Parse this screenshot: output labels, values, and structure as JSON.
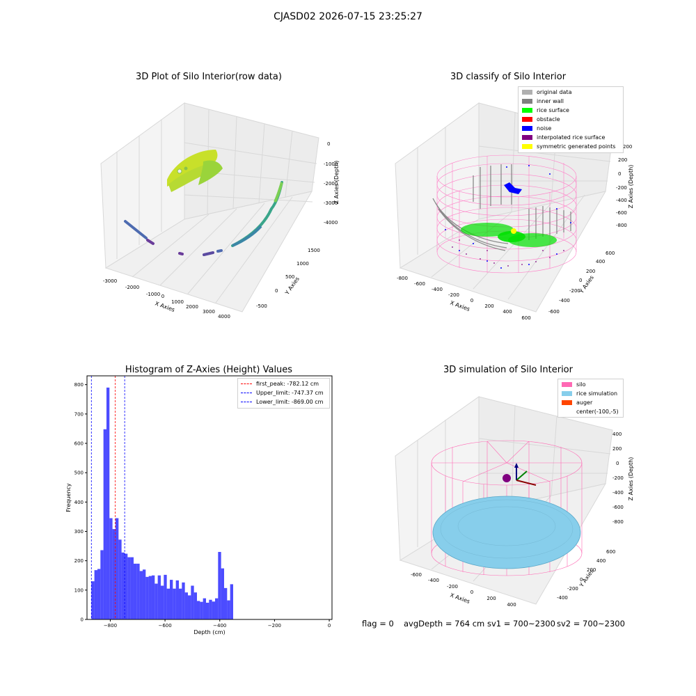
{
  "figure": {
    "suptitle": "CJASD02 2026-07-15 23:25:27",
    "footer": {
      "flag": "flag = 0",
      "avg_depth": "avgDepth = 764 cm",
      "sv1": "sv1 = 700~2300",
      "sv2": "sv2 = 700~2300"
    }
  },
  "panels": {
    "raw": {
      "title": "3D Plot of Silo Interior(row data)",
      "xlabel": "X Axies",
      "ylabel": "Y Axies",
      "zlabel": "Z Axies (Depth)",
      "xticks": [
        "-3000",
        "-2000",
        "-1000",
        "0",
        "1000",
        "2000",
        "3000",
        "4000"
      ],
      "yticks": [
        "-500",
        "0",
        "500",
        "1000",
        "1500"
      ],
      "zticks": [
        "0",
        "-1000",
        "-2000",
        "-3000",
        "-4000"
      ]
    },
    "classify": {
      "title": "3D classify of Silo Interior",
      "xlabel": "X Axies",
      "ylabel": "Y Axies",
      "zlabel": "Z Axies (Depth)",
      "xticks": [
        "-800",
        "-600",
        "-400",
        "-200",
        "0",
        "200",
        "400",
        "600"
      ],
      "yticks": [
        "-600",
        "-400",
        "-200",
        "0",
        "200",
        "400",
        "600"
      ],
      "zticks": [
        "200",
        "0",
        "-200",
        "-400",
        "-600",
        "-800"
      ],
      "ztick_top": "200",
      "legend": [
        {
          "label": "original data",
          "color": "#b0b0b0"
        },
        {
          "label": "inner wall",
          "color": "#808080"
        },
        {
          "label": "rice surface",
          "color": "#00ff00"
        },
        {
          "label": "obstacle",
          "color": "#ff0000"
        },
        {
          "label": "noise",
          "color": "#0000ff"
        },
        {
          "label": "interpolated rice surface",
          "color": "#800080"
        },
        {
          "label": "symmetric generated points",
          "color": "#ffff00"
        }
      ]
    },
    "simulation": {
      "title": "3D simulation of Silo Interior",
      "xlabel": "X Axies",
      "ylabel": "Y Axies",
      "zlabel": "Z Axies (Depth)",
      "xticks": [
        "-600",
        "-400",
        "-200",
        "0",
        "200",
        "400"
      ],
      "yticks": [
        "-400",
        "-200",
        "0",
        "200",
        "400",
        "600"
      ],
      "zticks": [
        "400",
        "200",
        "0",
        "-200",
        "-400",
        "-600",
        "-800"
      ],
      "legend": [
        {
          "label": "silo",
          "color": "#ff69b4"
        },
        {
          "label": "rice simulation",
          "color": "#87ceeb"
        },
        {
          "label": "auger",
          "color": "#ff4500"
        },
        {
          "label": "center(-100,-5)",
          "color": ""
        }
      ]
    }
  },
  "chart_data": {
    "type": "bar",
    "title": "Histogram of Z-Axies (Height) Values",
    "xlabel": "Depth (cm)",
    "ylabel": "Frequency",
    "xlim": [
      -885,
      10
    ],
    "ylim": [
      0,
      830
    ],
    "xticks": [
      -800,
      -600,
      -400,
      -200,
      0
    ],
    "yticks": [
      0,
      100,
      200,
      300,
      400,
      500,
      600,
      700,
      800
    ],
    "bar_color": "#0000ff",
    "bin_edges_start": -869,
    "bin_width": 11.02,
    "values": [
      130,
      168,
      172,
      236,
      648,
      790,
      345,
      308,
      345,
      272,
      228,
      224,
      212,
      212,
      190,
      190,
      165,
      170,
      145,
      148,
      150,
      122,
      150,
      115,
      152,
      105,
      135,
      105,
      133,
      105,
      126,
      92,
      82,
      115,
      92,
      63,
      60,
      72,
      57,
      67,
      61,
      72,
      230,
      174,
      107,
      65,
      120
    ],
    "vlines": [
      {
        "label": "first_peak: -782.12 cm",
        "x": -782.12,
        "color": "#ff0000"
      },
      {
        "label": "Upper_limit: -747.37 cm",
        "x": -747.37,
        "color": "#0000ff"
      },
      {
        "label": "Lower_limit: -869.00 cm",
        "x": -869.0,
        "color": "#0000ff"
      }
    ],
    "legend_position": "upper right"
  }
}
